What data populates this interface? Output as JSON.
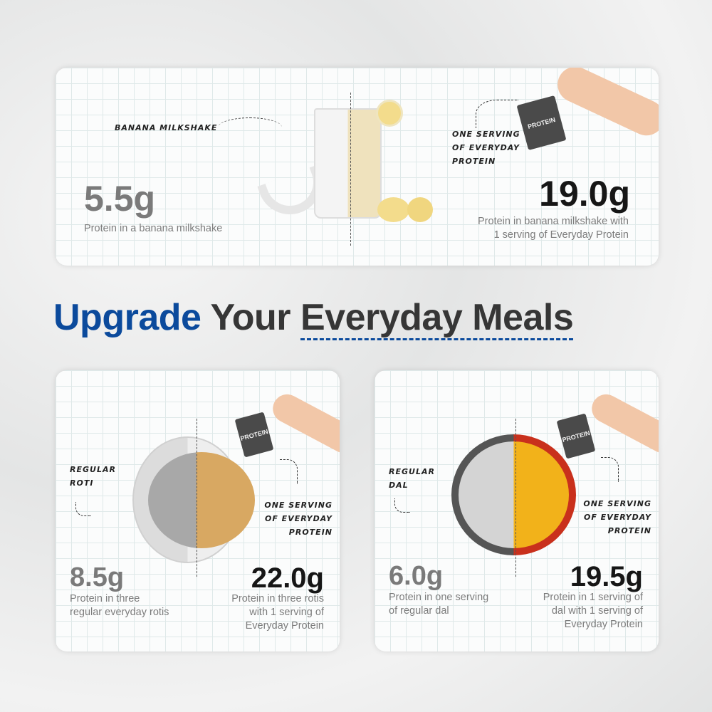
{
  "heading": {
    "part1": "Upgrade",
    "part2": "Your",
    "part3": "Everyday Meals",
    "accent": "#0b4a9c",
    "text_color": "#363636"
  },
  "milkshake": {
    "label": "BANANA MILKSHAKE",
    "base_value": "5.5g",
    "base_desc": "Protein in a banana milkshake",
    "pack_label": "ONE SERVING OF EVERYDAY PROTEIN",
    "pack_text": "PROTEIN",
    "boost_value": "19.0g",
    "boost_desc_1": "Protein in banana milkshake with",
    "boost_desc_2": "1 serving of Everyday Protein"
  },
  "roti": {
    "label_1": "REGULAR",
    "label_2": "ROTI",
    "base_value": "8.5g",
    "base_desc_1": "Protein in three",
    "base_desc_2": "regular everyday rotis",
    "pack_label_1": "ONE SERVING",
    "pack_label_2": "OF EVERYDAY",
    "pack_label_3": "PROTEIN",
    "pack_text": "PROTEIN",
    "boost_value": "22.0g",
    "boost_desc_1": "Protein in three rotis",
    "boost_desc_2": "with 1 serving of",
    "boost_desc_3": "Everyday Protein"
  },
  "dal": {
    "label_1": "REGULAR",
    "label_2": "DAL",
    "base_value": "6.0g",
    "base_desc_1": "Protein in one serving",
    "base_desc_2": "of regular dal",
    "pack_label_1": "ONE SERVING",
    "pack_label_2": "OF EVERYDAY",
    "pack_label_3": "PROTEIN",
    "pack_text": "PROTEIN",
    "boost_value": "19.5g",
    "boost_desc_1": "Protein in 1 serving of",
    "boost_desc_2": "dal with 1 serving of",
    "boost_desc_3": "Everyday Protein"
  }
}
